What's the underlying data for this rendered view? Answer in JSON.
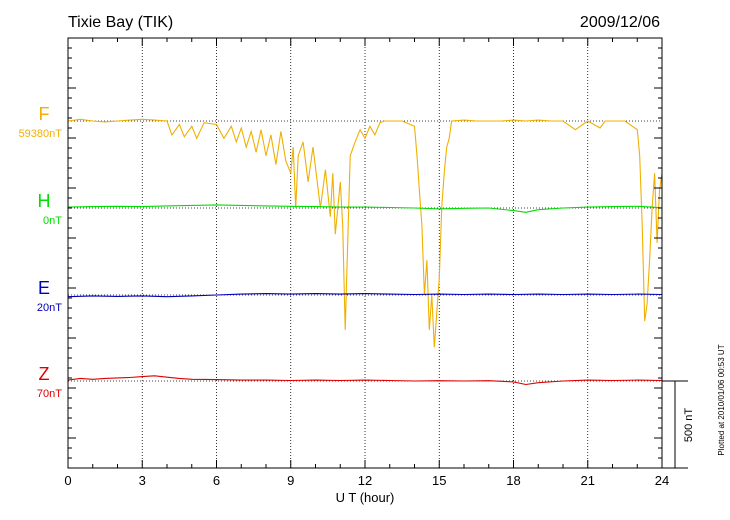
{
  "chart_data": {
    "type": "line",
    "title": "Tixie Bay (TIK)",
    "date": "2009/12/06",
    "xlabel": "U T (hour)",
    "xlim": [
      0,
      24
    ],
    "xticks": [
      "0",
      "3",
      "6",
      "9",
      "12",
      "15",
      "18",
      "21",
      "24"
    ],
    "grid": true,
    "scale_bar": "500 nT",
    "footnote": "Plotted at 2010/01/06 00:53 UT",
    "colors": {
      "F": "#f0b000",
      "H": "#00dd00",
      "E": "#0000bb",
      "Z": "#dd0000"
    },
    "series": [
      {
        "name": "F",
        "baseline": "59380nT",
        "x": [
          0,
          0.5,
          1,
          1.5,
          2,
          2.5,
          3,
          3.5,
          4,
          4.2,
          4.5,
          4.7,
          5,
          5.2,
          5.5,
          6,
          6.3,
          6.6,
          6.8,
          7,
          7.2,
          7.4,
          7.6,
          7.8,
          8,
          8.2,
          8.4,
          8.6,
          8.8,
          9,
          9.1,
          9.2,
          9.3,
          9.5,
          9.7,
          9.9,
          10.2,
          10.4,
          10.6,
          10.7,
          10.8,
          11,
          11.1,
          11.2,
          11.3,
          11.4,
          11.6,
          11.8,
          12,
          12.2,
          12.4,
          12.6,
          12.8,
          13,
          13.5,
          14,
          14.1,
          14.2,
          14.3,
          14.4,
          14.5,
          14.6,
          14.7,
          14.8,
          14.9,
          15,
          15.1,
          15.2,
          15.3,
          15.4,
          15.5,
          16,
          16.5,
          17,
          17.5,
          18,
          18.5,
          19,
          19.5,
          20,
          20.5,
          21,
          21.5,
          21.7,
          22,
          22.5,
          23,
          23.1,
          23.2,
          23.3,
          23.4,
          23.5,
          23.6,
          23.7,
          23.8,
          23.9,
          24
        ],
        "y": [
          0,
          10,
          0,
          -5,
          0,
          5,
          10,
          5,
          0,
          -80,
          -20,
          -90,
          -30,
          -100,
          -10,
          -20,
          -100,
          -30,
          -120,
          -40,
          -150,
          -60,
          -180,
          -50,
          -200,
          -80,
          -250,
          -60,
          -230,
          -300,
          -150,
          -500,
          -200,
          -120,
          -350,
          -150,
          -500,
          -280,
          -550,
          -300,
          -650,
          -350,
          -600,
          -1200,
          -700,
          -200,
          -120,
          -50,
          -100,
          -30,
          -80,
          -10,
          0,
          0,
          0,
          -30,
          -200,
          -400,
          -600,
          -1000,
          -800,
          -1200,
          -1000,
          -1300,
          -1100,
          -900,
          -500,
          -300,
          -150,
          -100,
          0,
          5,
          0,
          0,
          0,
          5,
          0,
          5,
          0,
          0,
          -50,
          0,
          -40,
          0,
          0,
          0,
          -50,
          -200,
          -600,
          -1150,
          -1050,
          -800,
          -500,
          -300,
          -700,
          -400,
          -300
        ]
      },
      {
        "name": "H",
        "baseline": "0nT",
        "x": [
          0,
          1,
          2,
          3,
          4,
          5,
          6,
          7,
          8,
          9,
          10,
          11,
          12,
          13,
          14,
          15,
          16,
          17,
          18,
          18.5,
          19,
          20,
          21,
          22,
          23,
          23.6,
          24
        ],
        "y": [
          5,
          8,
          10,
          8,
          12,
          15,
          18,
          15,
          12,
          10,
          8,
          5,
          5,
          3,
          0,
          -5,
          -2,
          0,
          -15,
          -25,
          -10,
          0,
          5,
          8,
          10,
          5,
          0
        ]
      },
      {
        "name": "E",
        "baseline": "20nT",
        "x": [
          0,
          1,
          2,
          3,
          4,
          5,
          6,
          7,
          8,
          9,
          10,
          11,
          12,
          13,
          14,
          15,
          16,
          17,
          18,
          19,
          20,
          21,
          22,
          23,
          24
        ],
        "y": [
          -10,
          -5,
          -8,
          -5,
          -10,
          -5,
          0,
          5,
          8,
          5,
          8,
          5,
          8,
          5,
          3,
          5,
          3,
          5,
          3,
          5,
          3,
          5,
          3,
          5,
          3
        ]
      },
      {
        "name": "Z",
        "baseline": "70nT",
        "x": [
          0,
          0.5,
          1,
          1.5,
          2,
          2.5,
          3,
          3.5,
          4,
          4.5,
          5,
          6,
          7,
          8,
          9,
          10,
          11,
          12,
          13,
          14,
          15,
          16,
          17,
          18,
          18.5,
          19,
          20,
          21,
          22,
          23,
          24
        ],
        "y": [
          5,
          15,
          10,
          15,
          18,
          20,
          25,
          30,
          22,
          15,
          10,
          8,
          5,
          5,
          3,
          5,
          3,
          5,
          3,
          0,
          2,
          0,
          2,
          -5,
          -20,
          -10,
          0,
          5,
          3,
          5,
          3
        ]
      }
    ]
  }
}
